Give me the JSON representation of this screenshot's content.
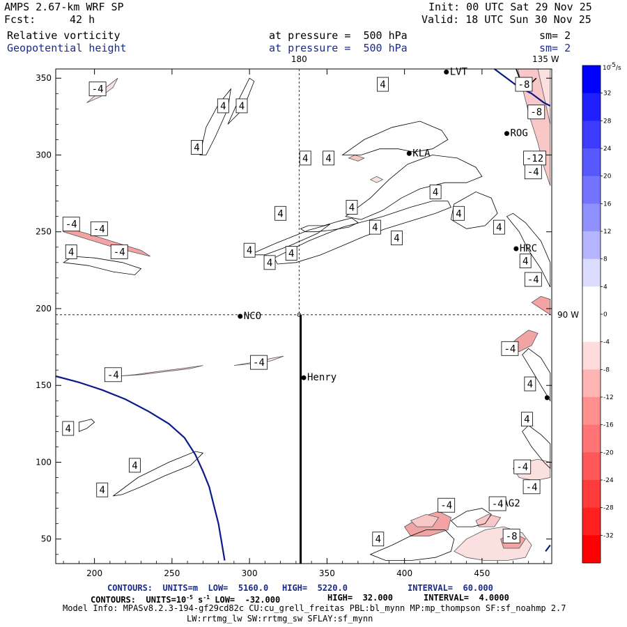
{
  "header": {
    "model": "AMPS 2.67-km WRF SP",
    "fcst_label": "Fcst:",
    "fcst_value": "42 h",
    "init": "Init: 00 UTC Sat 29 Nov 25",
    "valid": "Valid: 18 UTC Sun 30 Nov 25",
    "field1": "Relative vorticity",
    "field1_level": "at pressure =  500 hPa",
    "field1_sm": "sm= 2",
    "field2": "Geopotential height",
    "field2_level": "at pressure =  500 hPa",
    "field2_sm": "sm= 2"
  },
  "footer": {
    "line1_label": "CONTOURS:  UNITS=m  LOW=  5160.0",
    "line1_high": "HIGH=  5220.0",
    "line1_interval": "INTERVAL=  60.000",
    "line2_a": "CONTOURS:  UNITS=10",
    "line2_exp": "-5",
    "line2_b": " s",
    "line2_exp2": "-1",
    "line2_low": "LOW=  -32.000",
    "line2_high": "HIGH=  32.000",
    "line2_interval": "INTERVAL=  4.0000",
    "line3": "Model Info: MPASv8.2.3-194-gf29cd82c CU:cu_grell_freitas PBL:bl_mynn MP:mp_thompson SF:sf_noahmp 2.7",
    "line4": "LW:rrtmg_lw SW:rrtmg_sw SFLAY:sf_mynn"
  },
  "chart_data": {
    "type": "contour map",
    "xlim": [
      175,
      495
    ],
    "ylim": [
      34,
      356
    ],
    "x_ticks": [
      200,
      250,
      300,
      350,
      400,
      450
    ],
    "y_ticks": [
      50,
      100,
      150,
      200,
      250,
      300,
      350
    ],
    "grid_lines": {
      "meridian_label": "180",
      "parallel_label": "90 W",
      "corner_label": "135 W",
      "x": 332,
      "y": 196
    },
    "stations": [
      {
        "name": "LVT",
        "x": 427,
        "y": 354
      },
      {
        "name": "ROG",
        "x": 466,
        "y": 314
      },
      {
        "name": "KLA",
        "x": 403,
        "y": 301
      },
      {
        "name": "HRC",
        "x": 472,
        "y": 239
      },
      {
        "name": "NCO",
        "x": 294,
        "y": 195
      },
      {
        "name": "Henry",
        "x": 335,
        "y": 155
      },
      {
        "name": "AG2",
        "x": 461,
        "y": 73
      },
      {
        "name": "",
        "x": 492,
        "y": 142
      }
    ],
    "contour_labels": [
      {
        "text": "-4",
        "x": 202,
        "y": 343
      },
      {
        "text": "4",
        "x": 283,
        "y": 332
      },
      {
        "text": "4",
        "x": 295,
        "y": 332
      },
      {
        "text": "4",
        "x": 266,
        "y": 305
      },
      {
        "text": "4",
        "x": 386,
        "y": 346
      },
      {
        "text": "-8",
        "x": 477,
        "y": 346
      },
      {
        "text": "-8",
        "x": 485,
        "y": 328
      },
      {
        "text": "4",
        "x": 336,
        "y": 298
      },
      {
        "text": "4",
        "x": 351,
        "y": 298
      },
      {
        "text": "-12",
        "x": 484,
        "y": 298
      },
      {
        "text": "-4",
        "x": 483,
        "y": 289
      },
      {
        "text": "4",
        "x": 420,
        "y": 276
      },
      {
        "text": "4",
        "x": 366,
        "y": 266
      },
      {
        "text": "4",
        "x": 320,
        "y": 262
      },
      {
        "text": "-4",
        "x": 185,
        "y": 255
      },
      {
        "text": "-4",
        "x": 203,
        "y": 252
      },
      {
        "text": "4",
        "x": 435,
        "y": 262
      },
      {
        "text": "4",
        "x": 381,
        "y": 253
      },
      {
        "text": "4",
        "x": 395,
        "y": 246
      },
      {
        "text": "4",
        "x": 461,
        "y": 253
      },
      {
        "text": "4",
        "x": 185,
        "y": 237
      },
      {
        "text": "-4",
        "x": 216,
        "y": 237
      },
      {
        "text": "4",
        "x": 300,
        "y": 238
      },
      {
        "text": "4",
        "x": 327,
        "y": 236
      },
      {
        "text": "4",
        "x": 478,
        "y": 231
      },
      {
        "text": "4",
        "x": 313,
        "y": 230
      },
      {
        "text": "-4",
        "x": 483,
        "y": 219
      },
      {
        "text": "-4",
        "x": 306,
        "y": 165
      },
      {
        "text": "-4",
        "x": 212,
        "y": 157
      },
      {
        "text": "-4",
        "x": 468,
        "y": 174
      },
      {
        "text": "4",
        "x": 481,
        "y": 151
      },
      {
        "text": "4",
        "x": 479,
        "y": 128
      },
      {
        "text": "4",
        "x": 183,
        "y": 122
      },
      {
        "text": "4",
        "x": 226,
        "y": 98
      },
      {
        "text": "4",
        "x": 205,
        "y": 82
      },
      {
        "text": "-4",
        "x": 476,
        "y": 97
      },
      {
        "text": "-4",
        "x": 482,
        "y": 84
      },
      {
        "text": "-4",
        "x": 427,
        "y": 72
      },
      {
        "text": "-4",
        "x": 460,
        "y": 73
      },
      {
        "text": "-8",
        "x": 469,
        "y": 52
      },
      {
        "text": "4",
        "x": 383,
        "y": 50
      }
    ],
    "positive_vorticity_contours": [
      [
        [
          190,
          120
        ],
        [
          195,
          122
        ],
        [
          200,
          126
        ],
        [
          198,
          128
        ],
        [
          190,
          126
        ]
      ],
      [
        [
          212,
          78
        ],
        [
          228,
          90
        ],
        [
          248,
          100
        ],
        [
          265,
          107
        ],
        [
          270,
          106
        ],
        [
          262,
          98
        ],
        [
          245,
          91
        ],
        [
          230,
          84
        ],
        [
          218,
          79
        ]
      ],
      [
        [
          268,
          300
        ],
        [
          272,
          318
        ],
        [
          280,
          333
        ],
        [
          288,
          343
        ],
        [
          286,
          330
        ],
        [
          278,
          312
        ],
        [
          272,
          300
        ]
      ],
      [
        [
          286,
          320
        ],
        [
          294,
          338
        ],
        [
          300,
          350
        ],
        [
          303,
          348
        ],
        [
          296,
          330
        ]
      ],
      [
        [
          333,
          252
        ],
        [
          338,
          254
        ],
        [
          348,
          254
        ],
        [
          358,
          257
        ],
        [
          366,
          259
        ],
        [
          370,
          256
        ],
        [
          364,
          253
        ],
        [
          352,
          251
        ],
        [
          343,
          250
        ],
        [
          336,
          250
        ]
      ],
      [
        [
          316,
          233
        ],
        [
          338,
          244
        ],
        [
          360,
          253
        ],
        [
          386,
          260
        ],
        [
          404,
          266
        ],
        [
          418,
          270
        ],
        [
          428,
          270
        ],
        [
          430,
          266
        ],
        [
          420,
          262
        ],
        [
          404,
          257
        ],
        [
          388,
          252
        ],
        [
          374,
          247
        ],
        [
          360,
          241
        ],
        [
          346,
          235
        ],
        [
          330,
          230
        ],
        [
          318,
          229
        ]
      ],
      [
        [
          300,
          235
        ],
        [
          318,
          243
        ],
        [
          338,
          251
        ],
        [
          352,
          255
        ],
        [
          344,
          249
        ],
        [
          326,
          241
        ],
        [
          310,
          235
        ]
      ],
      [
        [
          360,
          300
        ],
        [
          374,
          310
        ],
        [
          392,
          318
        ],
        [
          410,
          322
        ],
        [
          424,
          316
        ],
        [
          428,
          310
        ],
        [
          418,
          304
        ],
        [
          406,
          302
        ],
        [
          396,
          304
        ],
        [
          384,
          304
        ],
        [
          372,
          300
        ]
      ],
      [
        [
          362,
          260
        ],
        [
          378,
          272
        ],
        [
          390,
          284
        ],
        [
          402,
          294
        ],
        [
          418,
          300
        ],
        [
          434,
          298
        ],
        [
          446,
          292
        ],
        [
          450,
          286
        ],
        [
          440,
          282
        ],
        [
          426,
          282
        ],
        [
          410,
          278
        ],
        [
          398,
          272
        ],
        [
          386,
          264
        ],
        [
          372,
          258
        ]
      ],
      [
        [
          180,
          230
        ],
        [
          196,
          228
        ],
        [
          212,
          224
        ],
        [
          226,
          222
        ],
        [
          230,
          226
        ],
        [
          218,
          230
        ],
        [
          200,
          233
        ],
        [
          186,
          234
        ]
      ],
      [
        [
          432,
          268
        ],
        [
          446,
          276
        ],
        [
          456,
          272
        ],
        [
          460,
          262
        ],
        [
          452,
          254
        ],
        [
          440,
          252
        ],
        [
          430,
          258
        ]
      ],
      [
        [
          466,
          260
        ],
        [
          474,
          250
        ],
        [
          480,
          238
        ],
        [
          488,
          226
        ],
        [
          494,
          214
        ],
        [
          494,
          230
        ],
        [
          488,
          244
        ],
        [
          478,
          256
        ],
        [
          470,
          262
        ]
      ],
      [
        [
          476,
          170
        ],
        [
          482,
          160
        ],
        [
          488,
          150
        ],
        [
          494,
          140
        ],
        [
          494,
          158
        ],
        [
          488,
          168
        ],
        [
          480,
          174
        ]
      ],
      [
        [
          476,
          120
        ],
        [
          482,
          110
        ],
        [
          490,
          100
        ],
        [
          494,
          96
        ],
        [
          494,
          112
        ],
        [
          488,
          118
        ],
        [
          480,
          124
        ]
      ],
      [
        [
          378,
          40
        ],
        [
          392,
          46
        ],
        [
          404,
          52
        ],
        [
          414,
          56
        ],
        [
          426,
          56
        ],
        [
          432,
          50
        ],
        [
          430,
          42
        ],
        [
          420,
          38
        ],
        [
          404,
          36
        ],
        [
          388,
          36
        ]
      ],
      [
        [
          430,
          62
        ],
        [
          440,
          68
        ],
        [
          450,
          70
        ],
        [
          456,
          66
        ],
        [
          452,
          60
        ],
        [
          444,
          58
        ],
        [
          434,
          58
        ]
      ]
    ],
    "negative_vorticity_contours": [
      [
        [
          195,
          334
        ],
        [
          202,
          340
        ],
        [
          210,
          346
        ],
        [
          215,
          350
        ],
        [
          212,
          344
        ],
        [
          204,
          338
        ]
      ],
      [
        [
          180,
          250
        ],
        [
          196,
          245
        ],
        [
          212,
          240
        ],
        [
          228,
          236
        ],
        [
          236,
          234
        ],
        [
          230,
          238
        ],
        [
          214,
          243
        ],
        [
          198,
          248
        ],
        [
          184,
          252
        ]
      ],
      [
        [
          215,
          156
        ],
        [
          226,
          157
        ],
        [
          240,
          159
        ],
        [
          256,
          161
        ],
        [
          270,
          163
        ],
        [
          262,
          161
        ],
        [
          246,
          159
        ],
        [
          230,
          157
        ]
      ],
      [
        [
          290,
          163
        ],
        [
          302,
          165
        ],
        [
          316,
          168
        ],
        [
          322,
          169
        ],
        [
          314,
          166
        ],
        [
          300,
          164
        ]
      ],
      [
        [
          466,
          174
        ],
        [
          472,
          180
        ],
        [
          480,
          186
        ],
        [
          486,
          184
        ],
        [
          482,
          176
        ],
        [
          474,
          172
        ]
      ],
      [
        [
          473,
          356
        ],
        [
          477,
          340
        ],
        [
          481,
          324
        ],
        [
          486,
          308
        ],
        [
          490,
          292
        ],
        [
          494,
          280
        ],
        [
          494,
          330
        ],
        [
          490,
          346
        ],
        [
          486,
          356
        ]
      ],
      [
        [
          486,
          356
        ],
        [
          494,
          320
        ],
        [
          494,
          356
        ]
      ],
      [
        [
          400,
          58
        ],
        [
          410,
          64
        ],
        [
          422,
          68
        ],
        [
          430,
          64
        ],
        [
          428,
          56
        ],
        [
          416,
          52
        ],
        [
          404,
          52
        ]
      ],
      [
        [
          404,
          62
        ],
        [
          414,
          66
        ],
        [
          422,
          64
        ],
        [
          418,
          58
        ],
        [
          408,
          58
        ]
      ],
      [
        [
          432,
          42
        ],
        [
          440,
          50
        ],
        [
          452,
          56
        ],
        [
          464,
          58
        ],
        [
          476,
          54
        ],
        [
          482,
          46
        ],
        [
          478,
          38
        ],
        [
          466,
          36
        ],
        [
          452,
          36
        ],
        [
          440,
          38
        ]
      ],
      [
        [
          462,
          50
        ],
        [
          470,
          54
        ],
        [
          478,
          50
        ],
        [
          474,
          44
        ],
        [
          464,
          44
        ]
      ],
      [
        [
          446,
          62
        ],
        [
          454,
          66
        ],
        [
          462,
          64
        ],
        [
          458,
          58
        ],
        [
          448,
          58
        ]
      ],
      [
        [
          470,
          96
        ],
        [
          478,
          100
        ],
        [
          486,
          102
        ],
        [
          494,
          100
        ],
        [
          494,
          90
        ],
        [
          484,
          88
        ],
        [
          474,
          90
        ]
      ],
      [
        [
          482,
          204
        ],
        [
          488,
          200
        ],
        [
          494,
          196
        ],
        [
          494,
          206
        ],
        [
          488,
          208
        ]
      ],
      [
        [
          364,
          298
        ],
        [
          368,
          300
        ],
        [
          374,
          298
        ],
        [
          370,
          296
        ]
      ],
      [
        [
          378,
          284
        ],
        [
          382,
          286
        ],
        [
          386,
          284
        ],
        [
          382,
          282
        ]
      ]
    ],
    "height_contours": [
      [
        [
          175,
          156
        ],
        [
          190,
          152
        ],
        [
          205,
          147
        ],
        [
          220,
          141
        ],
        [
          235,
          133
        ],
        [
          248,
          125
        ],
        [
          258,
          116
        ],
        [
          265,
          105
        ],
        [
          270,
          94
        ],
        [
          274,
          84
        ],
        [
          277,
          72
        ],
        [
          280,
          60
        ],
        [
          282,
          48
        ],
        [
          284,
          36
        ]
      ],
      [
        [
          458,
          356
        ],
        [
          466,
          350
        ],
        [
          474,
          344
        ],
        [
          482,
          340
        ],
        [
          490,
          334
        ],
        [
          494,
          332
        ]
      ],
      [
        [
          491,
          42
        ],
        [
          494,
          46
        ]
      ]
    ],
    "cross_section": {
      "x": 333,
      "y_start": 34,
      "y_end": 196
    },
    "colorbar": {
      "unit_label": "10",
      "unit_exp": "-5",
      "unit_suffix": "/s",
      "tick_labels": [
        "32",
        "28",
        "24",
        "20",
        "16",
        "12",
        "8",
        "4",
        "0",
        "-4",
        "-8",
        "-12",
        "-16",
        "-20",
        "-24",
        "-28",
        "-32"
      ],
      "colors": [
        "#0000ff",
        "#2020ff",
        "#3c3cff",
        "#5858ff",
        "#7474ff",
        "#9090ff",
        "#b4b4ff",
        "#dcdcff",
        "#ffffff",
        "#ffffff",
        "#ffdcdc",
        "#ffb4b4",
        "#ff9090",
        "#ff7474",
        "#ff5858",
        "#ff3c3c",
        "#ff2020",
        "#ff0000"
      ]
    }
  }
}
